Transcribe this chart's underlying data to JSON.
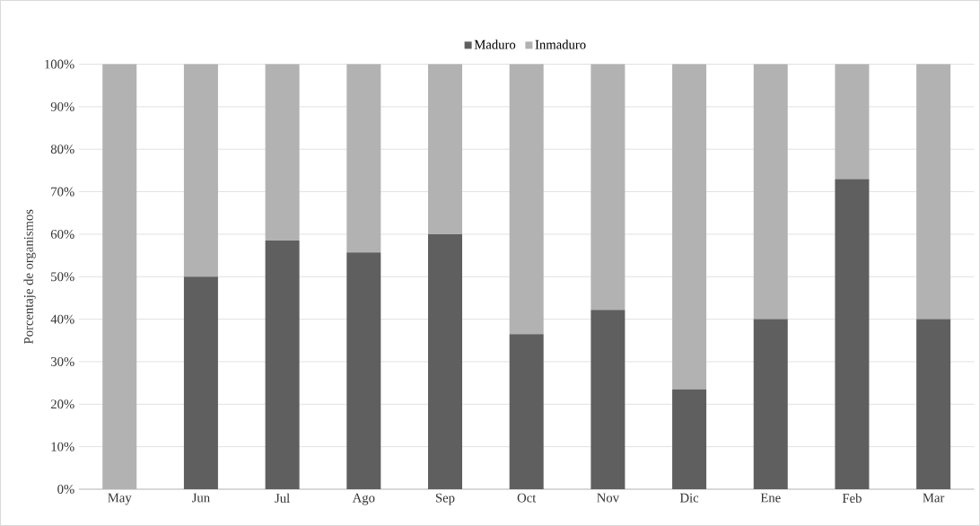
{
  "chart_data": {
    "type": "bar",
    "stacked": true,
    "ylabel": "Porcentaje de organismos",
    "categories": [
      "May",
      "Jun",
      "Jul",
      "Ago",
      "Sep",
      "Oct",
      "Nov",
      "Dic",
      "Ene",
      "Feb",
      "Mar"
    ],
    "series": [
      {
        "name": "Maduro",
        "color": "#5f5f5f",
        "values": [
          0,
          50,
          58.5,
          55.7,
          60,
          36.5,
          42.2,
          23.5,
          40,
          73,
          40
        ]
      },
      {
        "name": "Inmaduro",
        "color": "#b2b2b2",
        "values": [
          100,
          50,
          41.5,
          44.3,
          40,
          63.5,
          57.8,
          76.5,
          60,
          27,
          60
        ]
      }
    ],
    "ylim": [
      0,
      100
    ],
    "yticks": [
      {
        "value": 0,
        "label": "0%"
      },
      {
        "value": 10,
        "label": "10%"
      },
      {
        "value": 20,
        "label": "20%"
      },
      {
        "value": 30,
        "label": "30%"
      },
      {
        "value": 40,
        "label": "40%"
      },
      {
        "value": 50,
        "label": "50%"
      },
      {
        "value": 60,
        "label": "60%"
      },
      {
        "value": 70,
        "label": "70%"
      },
      {
        "value": 80,
        "label": "80%"
      },
      {
        "value": 90,
        "label": "90%"
      },
      {
        "value": 100,
        "label": "100%"
      }
    ],
    "grid": "y",
    "legend": "top"
  }
}
